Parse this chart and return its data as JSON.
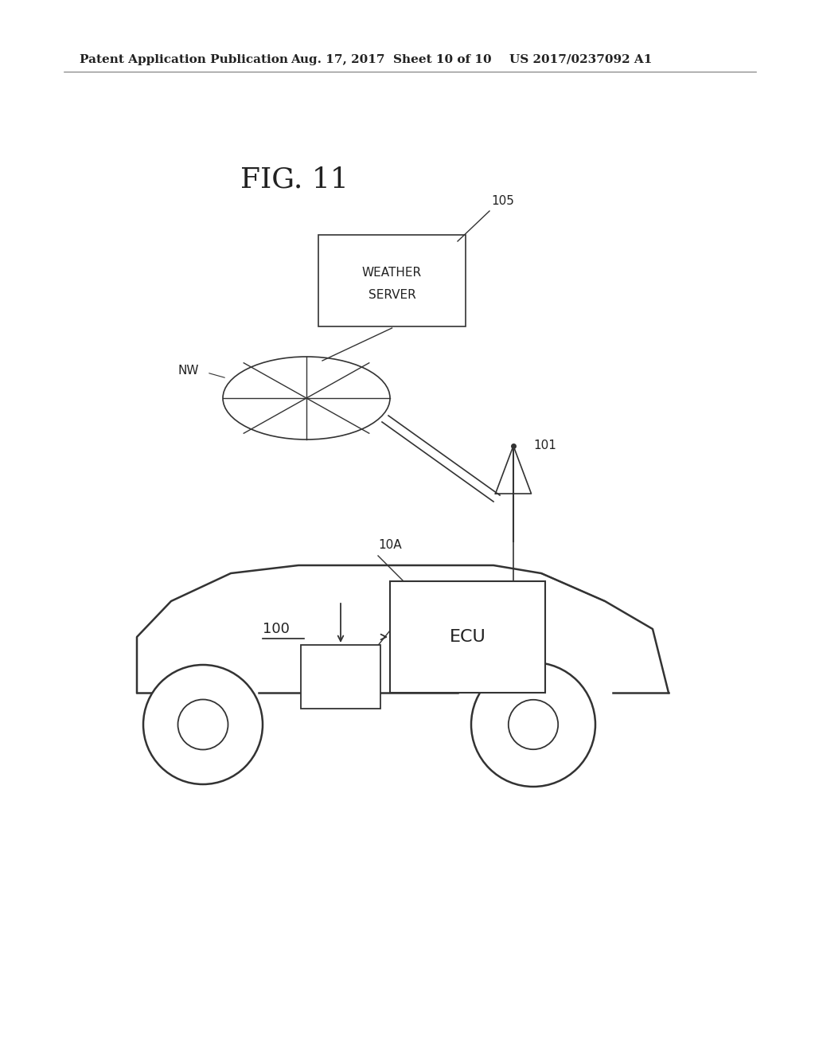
{
  "bg_color": "#ffffff",
  "header_text_left": "Patent Application Publication",
  "header_text_mid": "Aug. 17, 2017  Sheet 10 of 10",
  "header_text_right": "US 2017/0237092 A1",
  "fig_label": "FIG. 11",
  "line_color": "#333333",
  "text_color": "#222222",
  "header_fontsize": 11,
  "fig_label_fontsize": 26,
  "label_fontsize": 11,
  "ecu_fontsize": 16,
  "ws_fontsize": 11
}
